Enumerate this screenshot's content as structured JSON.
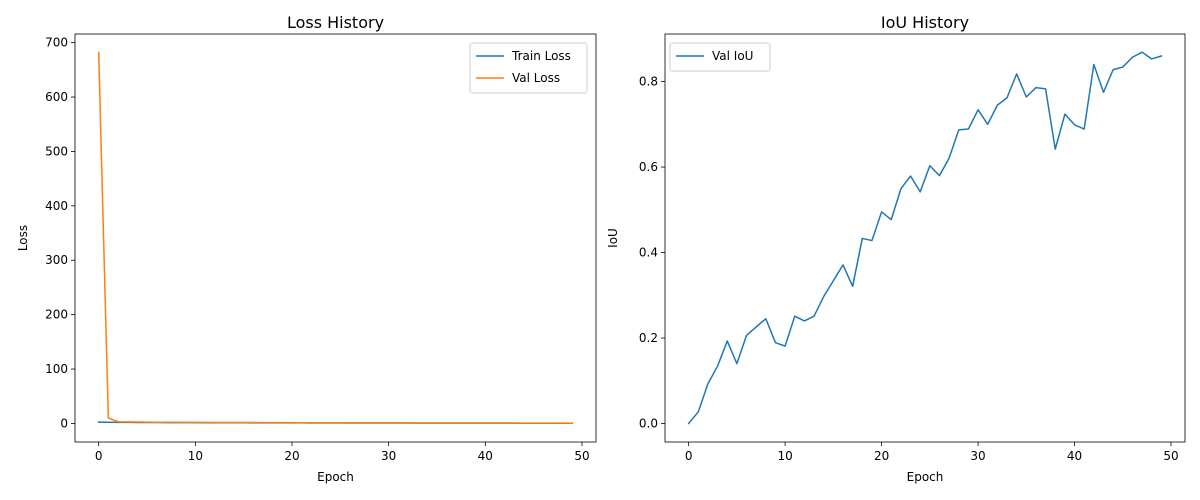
{
  "chart_data": [
    {
      "type": "line",
      "title": "Loss History",
      "xlabel": "Epoch",
      "ylabel": "Loss",
      "xlim": [
        -2.45,
        51.45
      ],
      "ylim": [
        -34.1,
        715.9
      ],
      "xticks": [
        0,
        10,
        20,
        30,
        40,
        50
      ],
      "yticks": [
        0,
        100,
        200,
        300,
        400,
        500,
        600,
        700
      ],
      "grid": false,
      "legend": "top-right",
      "x": [
        0,
        1,
        2,
        3,
        4,
        5,
        6,
        7,
        8,
        9,
        10,
        11,
        12,
        13,
        14,
        15,
        16,
        17,
        18,
        19,
        20,
        21,
        22,
        23,
        24,
        25,
        26,
        27,
        28,
        29,
        30,
        31,
        32,
        33,
        34,
        35,
        36,
        37,
        38,
        39,
        40,
        41,
        42,
        43,
        44,
        45,
        46,
        47,
        48,
        49
      ],
      "series": [
        {
          "name": "Train Loss",
          "color": "#1f77b4",
          "values": [
            2.5,
            2.2,
            2.0,
            1.9,
            1.8,
            1.7,
            1.65,
            1.6,
            1.55,
            1.5,
            1.45,
            1.4,
            1.35,
            1.3,
            1.25,
            1.2,
            1.15,
            1.1,
            1.05,
            1.0,
            0.98,
            0.95,
            0.93,
            0.9,
            0.88,
            0.86,
            0.84,
            0.82,
            0.8,
            0.78,
            0.76,
            0.74,
            0.72,
            0.7,
            0.68,
            0.66,
            0.64,
            0.62,
            0.6,
            0.58,
            0.56,
            0.54,
            0.52,
            0.5,
            0.48,
            0.46,
            0.44,
            0.42,
            0.4,
            0.38
          ]
        },
        {
          "name": "Val Loss",
          "color": "#ff7f0e",
          "values": [
            682,
            10,
            3.2,
            2.8,
            2.6,
            2.4,
            2.3,
            2.2,
            2.1,
            2.0,
            1.95,
            1.9,
            1.85,
            1.8,
            1.75,
            1.7,
            1.65,
            1.6,
            1.55,
            1.5,
            1.45,
            1.4,
            1.35,
            1.3,
            1.25,
            1.2,
            1.15,
            1.1,
            1.05,
            1.0,
            0.98,
            0.96,
            0.94,
            0.92,
            0.9,
            0.88,
            0.86,
            0.84,
            0.82,
            0.8,
            0.78,
            0.76,
            0.74,
            0.72,
            0.7,
            0.68,
            0.66,
            0.64,
            0.62,
            0.6
          ]
        }
      ]
    },
    {
      "type": "line",
      "title": "IoU History",
      "xlabel": "Epoch",
      "ylabel": "IoU",
      "xlim": [
        -2.45,
        51.45
      ],
      "ylim": [
        -0.0434,
        0.9114
      ],
      "xticks": [
        0,
        10,
        20,
        30,
        40,
        50
      ],
      "yticks": [
        0.0,
        0.2,
        0.4,
        0.6,
        0.8
      ],
      "ytick_labels": [
        "0.0",
        "0.2",
        "0.4",
        "0.6",
        "0.8"
      ],
      "grid": false,
      "legend": "top-left",
      "x": [
        0,
        1,
        2,
        3,
        4,
        5,
        6,
        7,
        8,
        9,
        10,
        11,
        12,
        13,
        14,
        15,
        16,
        17,
        18,
        19,
        20,
        21,
        22,
        23,
        24,
        25,
        26,
        27,
        28,
        29,
        30,
        31,
        32,
        33,
        34,
        35,
        36,
        37,
        38,
        39,
        40,
        41,
        42,
        43,
        44,
        45,
        46,
        47,
        48,
        49
      ],
      "series": [
        {
          "name": "Val IoU",
          "color": "#1f77b4",
          "values": [
            0.0,
            0.027,
            0.093,
            0.134,
            0.193,
            0.14,
            0.206,
            0.226,
            0.245,
            0.189,
            0.181,
            0.251,
            0.24,
            0.251,
            0.297,
            0.334,
            0.371,
            0.321,
            0.433,
            0.428,
            0.495,
            0.477,
            0.549,
            0.579,
            0.542,
            0.603,
            0.58,
            0.621,
            0.687,
            0.689,
            0.734,
            0.7,
            0.745,
            0.762,
            0.818,
            0.764,
            0.786,
            0.783,
            0.642,
            0.724,
            0.699,
            0.689,
            0.84,
            0.775,
            0.828,
            0.834,
            0.857,
            0.869,
            0.853,
            0.86
          ]
        }
      ]
    }
  ]
}
